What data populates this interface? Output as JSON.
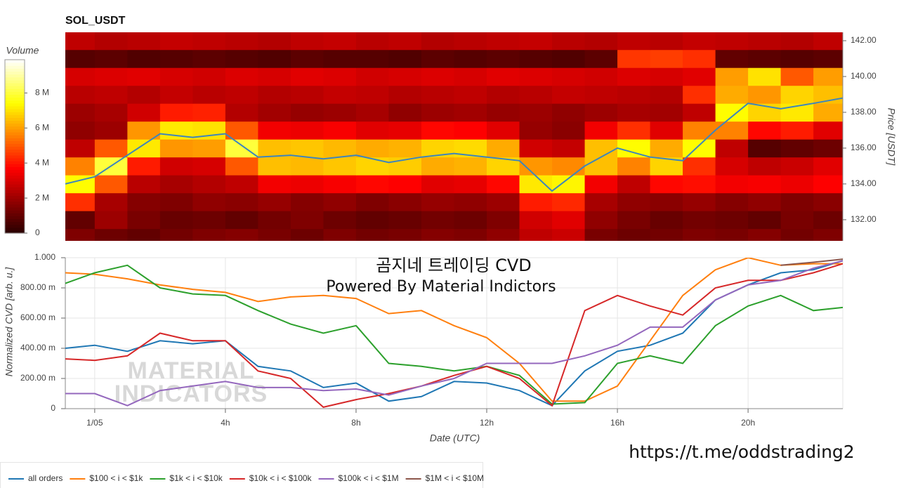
{
  "chart_data": [
    {
      "type": "heatmap",
      "title": "SOL_USDT",
      "ylabel": "Price [USDT]",
      "yaxis": "right",
      "xlim": [
        -0.9,
        22.9
      ],
      "ylim": [
        130.82,
        142.47
      ],
      "yticks": [
        {
          "value": 132,
          "label": "132.00"
        },
        {
          "value": 134,
          "label": "134.00"
        },
        {
          "value": 136,
          "label": "136.00"
        },
        {
          "value": 138,
          "label": "138.00"
        },
        {
          "value": 140,
          "label": "140.00"
        },
        {
          "value": 142,
          "label": "142.00"
        }
      ],
      "xbins": [
        -1,
        0,
        1,
        2,
        3,
        4,
        5,
        6,
        7,
        8,
        9,
        10,
        11,
        12,
        13,
        14,
        15,
        16,
        17,
        18,
        19,
        20,
        21,
        22,
        23
      ],
      "ybins": [
        130.5,
        131.5,
        132.5,
        133.5,
        134.5,
        135.5,
        136.5,
        137.5,
        138.5,
        139.5,
        140.5,
        141.5,
        142.5
      ],
      "values": [
        [
          1.5,
          1.2,
          1.0,
          1.3,
          1.5,
          1.6,
          1.4,
          1.2,
          1.5,
          1.3,
          1.4,
          1.6,
          1.5,
          1.8,
          2.6,
          2.8,
          1.4,
          1.2,
          1.3,
          1.5,
          1.4,
          1.6,
          1.3,
          1.5
        ],
        [
          1.0,
          2.0,
          1.4,
          1.1,
          1.2,
          1.0,
          1.3,
          1.5,
          1.2,
          1.0,
          1.1,
          1.3,
          1.2,
          1.5,
          2.9,
          3.2,
          1.8,
          1.4,
          1.1,
          1.3,
          1.2,
          1.0,
          1.4,
          1.2
        ],
        [
          4.4,
          2.2,
          1.6,
          1.5,
          1.8,
          1.7,
          1.9,
          1.6,
          1.8,
          1.5,
          1.7,
          1.9,
          1.8,
          2.0,
          4.1,
          4.3,
          2.2,
          1.8,
          1.7,
          1.9,
          1.6,
          1.8,
          1.5,
          1.7
        ],
        [
          7.4,
          5.0,
          2.5,
          2.2,
          2.4,
          2.6,
          3.5,
          3.4,
          3.6,
          3.8,
          3.7,
          3.2,
          3.3,
          3.8,
          7.1,
          7.3,
          3.5,
          2.6,
          3.8,
          3.9,
          3.5,
          3.6,
          3.4,
          3.7
        ],
        [
          5.6,
          8.0,
          4.1,
          2.9,
          3.0,
          5.0,
          6.5,
          6.4,
          6.6,
          6.8,
          6.7,
          6.2,
          6.3,
          6.8,
          5.9,
          5.7,
          6.5,
          5.6,
          6.8,
          4.4,
          3.0,
          2.6,
          2.8,
          3.2
        ],
        [
          2.6,
          5.0,
          7.1,
          5.9,
          6.0,
          8.0,
          6.5,
          6.6,
          6.4,
          6.2,
          6.3,
          6.8,
          6.9,
          6.2,
          2.9,
          2.7,
          6.5,
          7.4,
          6.2,
          7.4,
          2.6,
          0.8,
          1.0,
          1.2
        ],
        [
          1.8,
          2.0,
          5.9,
          7.1,
          7.0,
          5.0,
          3.5,
          3.4,
          3.6,
          3.2,
          3.3,
          3.8,
          3.7,
          3.2,
          1.9,
          1.7,
          3.5,
          4.4,
          3.2,
          5.6,
          5.6,
          3.8,
          4.1,
          3.2
        ],
        [
          2.0,
          2.2,
          2.9,
          4.1,
          4.2,
          2.4,
          2.1,
          1.9,
          2.0,
          2.2,
          1.8,
          2.0,
          2.1,
          1.9,
          2.0,
          1.8,
          2.0,
          2.2,
          2.1,
          2.6,
          7.4,
          6.8,
          7.1,
          6.2
        ],
        [
          2.5,
          2.6,
          2.4,
          2.7,
          2.5,
          2.6,
          2.4,
          2.5,
          2.7,
          2.6,
          2.4,
          2.5,
          2.6,
          2.4,
          2.5,
          2.7,
          2.6,
          2.5,
          2.4,
          4.4,
          6.2,
          5.9,
          6.8,
          6.5
        ],
        [
          3.0,
          3.1,
          3.2,
          3.0,
          2.9,
          3.1,
          3.0,
          3.2,
          3.1,
          2.9,
          3.0,
          3.1,
          3.0,
          3.2,
          3.1,
          3.0,
          2.9,
          3.1,
          3.0,
          3.2,
          6.0,
          7.0,
          5.0,
          6.0
        ],
        [
          0.8,
          0.9,
          0.7,
          0.8,
          0.9,
          0.8,
          0.7,
          0.9,
          0.8,
          0.8,
          0.7,
          0.9,
          0.8,
          0.9,
          0.8,
          0.7,
          0.9,
          4.5,
          4.6,
          4.4,
          1.0,
          0.9,
          0.8,
          0.9
        ],
        [
          2.6,
          2.4,
          2.5,
          2.7,
          2.6,
          2.5,
          2.4,
          2.6,
          2.7,
          2.5,
          2.6,
          2.4,
          2.5,
          2.6,
          2.7,
          2.5,
          2.4,
          2.6,
          2.5,
          2.7,
          2.6,
          2.5,
          2.4,
          2.6
        ]
      ],
      "colorbar": {
        "title": "Volume",
        "lim": [
          0,
          9.9
        ],
        "colormap": "hot",
        "ticks": [
          0,
          {
            "value": 2,
            "label": "2 M"
          },
          {
            "value": 4,
            "label": "4 M"
          },
          {
            "value": 6,
            "label": "6 M"
          },
          {
            "value": 8,
            "label": "8 M"
          }
        ]
      },
      "line": {
        "color": "#3d85bd",
        "x": [
          -0.9,
          0,
          1,
          2,
          3,
          4,
          5,
          6,
          7,
          8,
          9,
          10,
          11,
          12,
          13,
          14,
          15,
          16,
          17,
          18,
          19,
          20,
          21,
          22,
          22.9
        ],
        "values": [
          134.0,
          134.4,
          135.6,
          136.8,
          136.6,
          136.8,
          135.5,
          135.6,
          135.4,
          135.6,
          135.2,
          135.5,
          135.7,
          135.5,
          135.3,
          133.6,
          135.0,
          136.0,
          135.5,
          135.3,
          137.0,
          138.5,
          138.2,
          138.5,
          138.8
        ]
      }
    },
    {
      "type": "line",
      "xlabel": "Date (UTC)",
      "ylabel": "Normalized CVD [arb. u.]",
      "grid": true,
      "legend": "bottom",
      "xlim": [
        -0.9,
        22.9
      ],
      "ylim": [
        0,
        1
      ],
      "xticks": [
        {
          "value": 0,
          "label": "1/05"
        },
        {
          "value": 4,
          "label": "4h"
        },
        {
          "value": 8,
          "label": "8h"
        },
        {
          "value": 12,
          "label": "12h"
        },
        {
          "value": 16,
          "label": "16h"
        },
        {
          "value": 20,
          "label": "20h"
        }
      ],
      "yticks": [
        0,
        {
          "value": 0.2,
          "label": "200.00 m"
        },
        {
          "value": 0.4,
          "label": "400.00 m"
        },
        {
          "value": 0.6,
          "label": "600.00 m"
        },
        {
          "value": 0.8,
          "label": "800.00 m"
        },
        {
          "value": 1,
          "label": "1.000"
        }
      ],
      "annotations": [
        "곰지네 트레이딩 CVD",
        "Powered By Material Indictors"
      ],
      "watermark": [
        "MATERIAL",
        "INDICATORS"
      ],
      "x": [
        -0.9,
        0,
        1,
        2,
        3,
        4,
        5,
        6,
        7,
        8,
        9,
        10,
        11,
        12,
        13,
        14,
        15,
        16,
        17,
        18,
        19,
        20,
        21,
        22,
        22.9
      ],
      "series": [
        {
          "name": "all orders",
          "color": "#1f77b4",
          "values": [
            0.4,
            0.42,
            0.38,
            0.45,
            0.43,
            0.45,
            0.28,
            0.25,
            0.14,
            0.17,
            0.05,
            0.08,
            0.18,
            0.17,
            0.12,
            0.02,
            0.25,
            0.38,
            0.42,
            0.5,
            0.72,
            0.82,
            0.9,
            0.92,
            0.98
          ]
        },
        {
          "name": "$100 < i < $1k",
          "color": "#ff7f0e",
          "values": [
            0.9,
            0.89,
            0.86,
            0.82,
            0.79,
            0.77,
            0.71,
            0.74,
            0.75,
            0.73,
            0.63,
            0.65,
            0.55,
            0.47,
            0.3,
            0.05,
            0.05,
            0.15,
            0.45,
            0.75,
            0.92,
            1.0,
            0.95,
            0.96,
            0.96
          ]
        },
        {
          "name": "$1k < i < $10k",
          "color": "#2ca02c",
          "values": [
            0.83,
            0.9,
            0.95,
            0.8,
            0.76,
            0.75,
            0.65,
            0.56,
            0.5,
            0.55,
            0.3,
            0.28,
            0.25,
            0.28,
            0.22,
            0.03,
            0.04,
            0.3,
            0.35,
            0.3,
            0.55,
            0.68,
            0.75,
            0.65,
            0.67
          ]
        },
        {
          "name": "$10k < i < $100k",
          "color": "#d62728",
          "values": [
            0.33,
            0.32,
            0.35,
            0.5,
            0.45,
            0.45,
            0.25,
            0.2,
            0.01,
            0.06,
            0.1,
            0.15,
            0.22,
            0.28,
            0.2,
            0.02,
            0.65,
            0.75,
            0.68,
            0.62,
            0.8,
            0.85,
            0.85,
            0.9,
            0.96
          ]
        },
        {
          "name": "$100k < i < $1M",
          "color": "#9467bd",
          "values": [
            0.1,
            0.1,
            0.02,
            0.12,
            0.15,
            0.18,
            0.14,
            0.14,
            0.12,
            0.13,
            0.09,
            0.15,
            0.2,
            0.3,
            0.3,
            0.3,
            0.35,
            0.42,
            0.54,
            0.54,
            0.72,
            0.82,
            0.85,
            0.93,
            0.98
          ]
        },
        {
          "name": "$1M < i < $10M",
          "color": "#8c564b",
          "values": [
            null,
            null,
            null,
            null,
            null,
            null,
            null,
            null,
            null,
            null,
            null,
            null,
            null,
            null,
            null,
            null,
            null,
            null,
            null,
            null,
            null,
            null,
            0.95,
            0.97,
            0.99
          ]
        }
      ]
    }
  ],
  "footer_link": "https://t.me/oddstrading2"
}
